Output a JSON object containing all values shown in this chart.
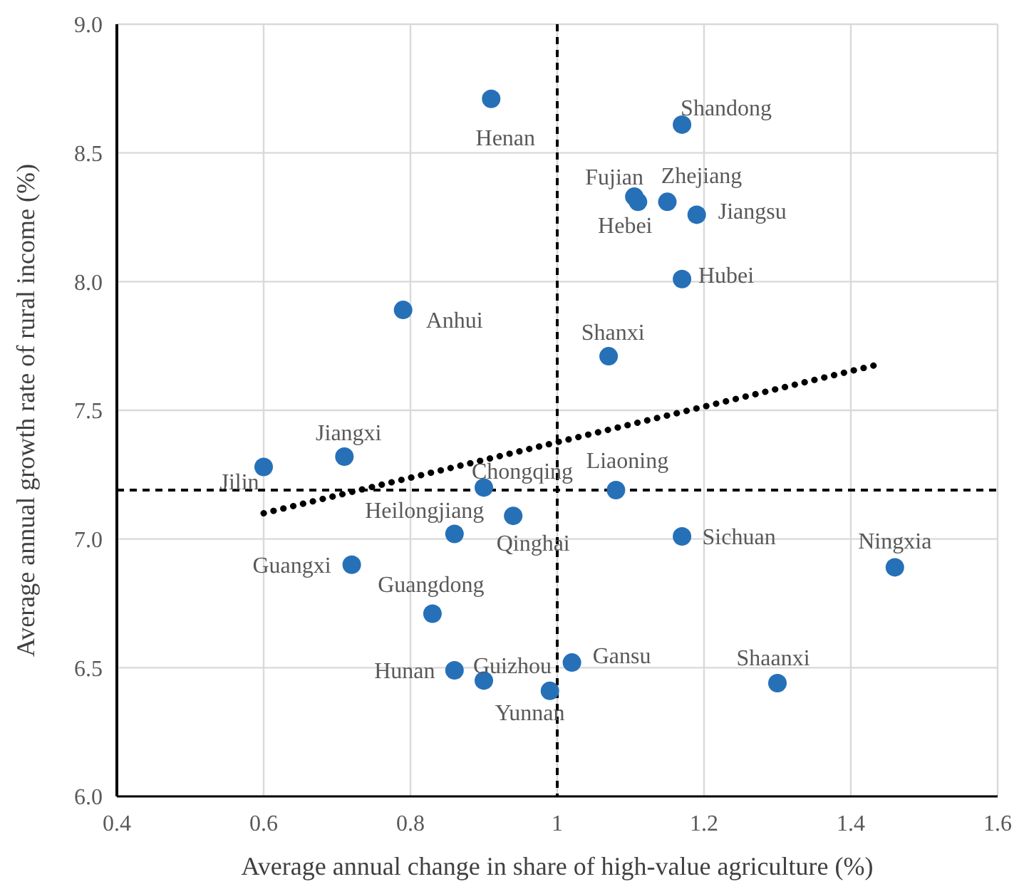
{
  "chart_data": {
    "type": "scatter",
    "xlabel": "Average annual change in share of high-value agriculture (%)",
    "ylabel": "Average annual growth rate of rural income (%)",
    "xlim": [
      0.4,
      1.6
    ],
    "xticks": [
      0.4,
      0.6,
      0.8,
      1,
      1.2,
      1.4,
      1.6
    ],
    "ylim": [
      6.0,
      9.0
    ],
    "yticks": [
      {
        "value": 6.0,
        "label": "6.0"
      },
      {
        "value": 6.5,
        "label": "6.5"
      },
      {
        "value": 7.0,
        "label": "7.0"
      },
      {
        "value": 7.5,
        "label": "7.5"
      },
      {
        "value": 8.0,
        "label": "8.0"
      },
      {
        "value": 8.5,
        "label": "8.5"
      },
      {
        "value": 9.0,
        "label": "9.0"
      }
    ],
    "grid": true,
    "marker": "circle",
    "series": [
      {
        "color": "#2670b8",
        "x": [
          0.91,
          1.17,
          1.105,
          1.11,
          1.15,
          1.19,
          1.17,
          1.07,
          0.79,
          0.6,
          0.71,
          0.9,
          0.86,
          0.94,
          0.72,
          0.83,
          0.86,
          0.9,
          0.99,
          1.02,
          1.08,
          1.17,
          1.46,
          1.3
        ],
        "values": [
          8.71,
          8.61,
          8.33,
          8.31,
          8.31,
          8.26,
          8.01,
          7.71,
          7.89,
          7.28,
          7.32,
          7.2,
          7.02,
          7.09,
          6.9,
          6.71,
          6.49,
          6.45,
          6.41,
          6.52,
          7.19,
          7.01,
          6.89,
          6.44
        ]
      },
      {
        "type": "line",
        "color": "#000000",
        "line_style": "dotted",
        "marker": "none",
        "x": [
          0.6,
          1.44
        ],
        "values": [
          7.1,
          7.68
        ]
      }
    ],
    "ref_lines": [
      {
        "axis": "x",
        "value": 1,
        "color": "#000000",
        "line_style": "dashed"
      },
      {
        "axis": "y",
        "value": 7.19,
        "color": "#000000",
        "line_style": "dashed"
      }
    ],
    "annotations": [
      {
        "text": "Henan",
        "x": 0.91,
        "y": 8.71
      },
      {
        "text": "Shandong",
        "x": 1.17,
        "y": 8.61
      },
      {
        "text": "Fujian",
        "x": 1.105,
        "y": 8.33
      },
      {
        "text": "Hebei",
        "x": 1.11,
        "y": 8.31
      },
      {
        "text": "Zhejiang",
        "x": 1.15,
        "y": 8.31
      },
      {
        "text": "Jiangsu",
        "x": 1.19,
        "y": 8.26
      },
      {
        "text": "Hubei",
        "x": 1.17,
        "y": 8.01
      },
      {
        "text": "Shanxi",
        "x": 1.07,
        "y": 7.71
      },
      {
        "text": "Anhui",
        "x": 0.79,
        "y": 7.89
      },
      {
        "text": "Jilin",
        "x": 0.6,
        "y": 7.28
      },
      {
        "text": "Jiangxi",
        "x": 0.71,
        "y": 7.32
      },
      {
        "text": "Chongqing",
        "x": 0.9,
        "y": 7.2
      },
      {
        "text": "Heilongjiang",
        "x": 0.86,
        "y": 7.02
      },
      {
        "text": "Qinghai",
        "x": 0.94,
        "y": 7.09
      },
      {
        "text": "Guangxi",
        "x": 0.72,
        "y": 6.9
      },
      {
        "text": "Guangdong",
        "x": 0.83,
        "y": 6.71
      },
      {
        "text": "Hunan",
        "x": 0.86,
        "y": 6.49
      },
      {
        "text": "Guizhou",
        "x": 0.9,
        "y": 6.45
      },
      {
        "text": "Yunnan",
        "x": 0.99,
        "y": 6.41
      },
      {
        "text": "Gansu",
        "x": 1.02,
        "y": 6.52
      },
      {
        "text": "Liaoning",
        "x": 1.08,
        "y": 7.19
      },
      {
        "text": "Sichuan",
        "x": 1.17,
        "y": 7.01
      },
      {
        "text": "Ningxia",
        "x": 1.46,
        "y": 6.89
      },
      {
        "text": "Shaanxi",
        "x": 1.3,
        "y": 6.44
      }
    ]
  }
}
